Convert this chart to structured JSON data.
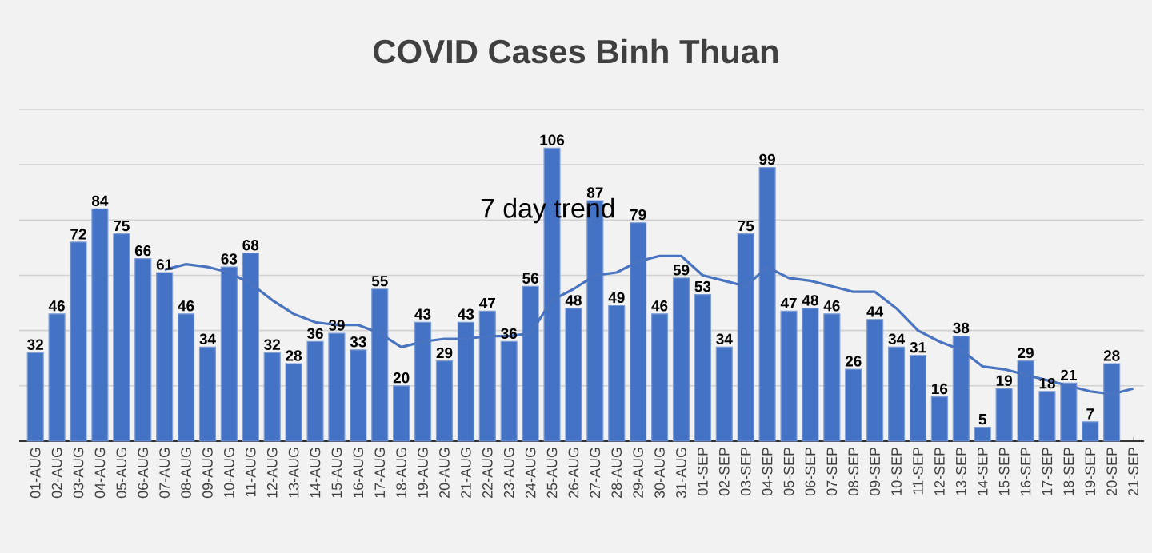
{
  "chart_data": {
    "type": "bar",
    "title": "COVID Cases Binh Thuan",
    "categories": [
      "01-AUG",
      "02-AUG",
      "03-AUG",
      "04-AUG",
      "05-AUG",
      "06-AUG",
      "07-AUG",
      "08-AUG",
      "09-AUG",
      "10-AUG",
      "11-AUG",
      "12-AUG",
      "13-AUG",
      "14-AUG",
      "15-AUG",
      "16-AUG",
      "17-AUG",
      "18-AUG",
      "19-AUG",
      "20-AUG",
      "21-AUG",
      "22-AUG",
      "23-AUG",
      "24-AUG",
      "25-AUG",
      "26-AUG",
      "27-AUG",
      "28-AUG",
      "29-AUG",
      "30-AUG",
      "31-AUG",
      "01-SEP",
      "02-SEP",
      "03-SEP",
      "04-SEP",
      "05-SEP",
      "06-SEP",
      "07-SEP",
      "08-SEP",
      "09-SEP",
      "10-SEP",
      "11-SEP",
      "12-SEP",
      "13-SEP",
      "14-SEP",
      "15-SEP",
      "16-SEP",
      "17-SEP",
      "18-SEP",
      "19-SEP",
      "20-SEP",
      "21-SEP"
    ],
    "series": [
      {
        "color": "#4472c4",
        "values": [
          32,
          46,
          72,
          84,
          75,
          66,
          61,
          46,
          34,
          63,
          68,
          32,
          28,
          36,
          39,
          33,
          55,
          20,
          43,
          29,
          43,
          47,
          36,
          56,
          106,
          48,
          87,
          49,
          79,
          46,
          59,
          53,
          34,
          75,
          99,
          47,
          48,
          46,
          26,
          44,
          34,
          31,
          16,
          38,
          5,
          19,
          29,
          18,
          21,
          7,
          28,
          null
        ],
        "value_labels": [
          "32",
          "46",
          "72",
          "84",
          "75",
          "66",
          "61",
          "46",
          "34",
          "63",
          "68",
          "32",
          "28",
          "36",
          "39",
          "33",
          "55",
          "20",
          "43",
          "29",
          "43",
          "47",
          "36",
          "56",
          "106",
          "48",
          "87",
          "49",
          "79",
          "46",
          "59",
          "53",
          "34",
          "75",
          "99",
          "47",
          "48",
          "46",
          "26",
          "44",
          "34",
          "31",
          "16",
          "38",
          "5",
          "19",
          "29",
          "18",
          "21",
          "7",
          "28",
          null
        ]
      },
      {
        "type": "line",
        "name": "7 day trend",
        "color": "#4a74c0",
        "values": [
          null,
          null,
          null,
          null,
          null,
          null,
          62,
          64,
          63,
          61,
          57,
          51,
          46,
          43,
          42,
          42,
          39,
          34,
          36,
          37,
          37,
          38,
          38,
          39,
          51,
          55,
          60,
          61,
          65,
          67,
          67,
          60,
          58,
          56,
          63,
          59,
          58,
          56,
          54,
          54,
          48,
          40,
          36,
          33,
          27,
          26,
          24,
          22,
          20,
          18,
          17,
          19
        ]
      }
    ],
    "tick_labels": "x",
    "grid": "y",
    "marker": "none",
    "line_style": "solid"
  }
}
